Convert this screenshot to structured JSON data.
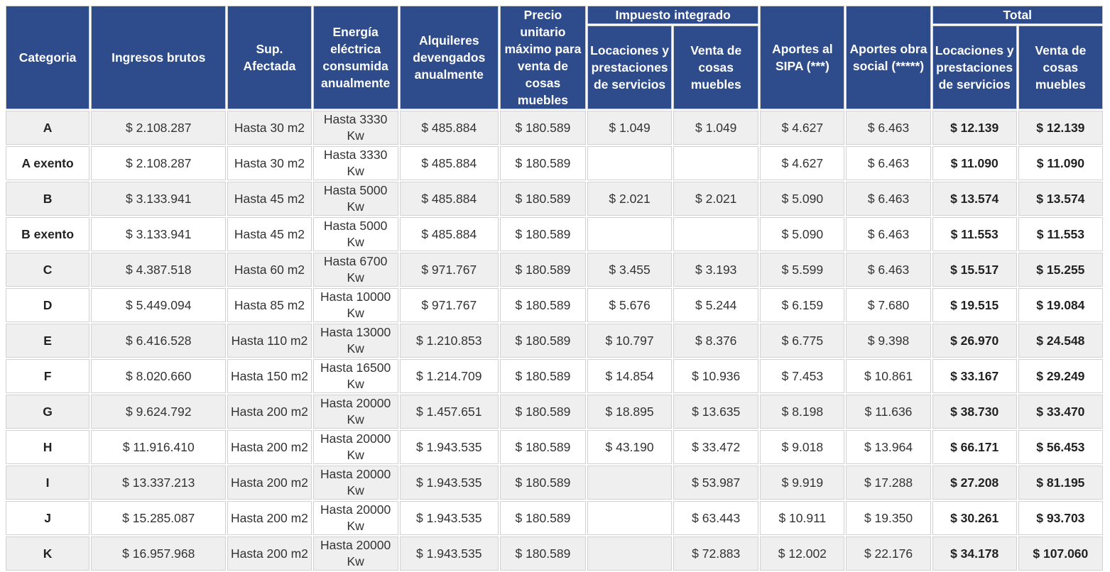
{
  "header": {
    "left": [
      "Categoria",
      "Ingresos brutos",
      "Sup. Afectada",
      "Energía eléctrica consumida anualmente",
      "Alquileres devengados anualmente",
      "Precio unitario máximo para venta de cosas muebles"
    ],
    "impuesto_integrado": {
      "title": "Impuesto integrado",
      "columns": [
        "Locaciones y prestaciones de servicios",
        "Venta de cosas muebles"
      ]
    },
    "aportes": [
      "Aportes al SIPA (***)",
      "Aportes obra social (*****)"
    ],
    "total": {
      "title": "Total",
      "columns": [
        "Locaciones y prestaciones de servicios",
        "Venta de cosas muebles"
      ]
    }
  },
  "rows": [
    [
      "A",
      "$ 2.108.287",
      "Hasta 30 m2",
      "Hasta 3330 Kw",
      "$ 485.884",
      "$ 180.589",
      "$ 1.049",
      "$ 1.049",
      "$ 4.627",
      "$ 6.463",
      "$ 12.139",
      "$ 12.139"
    ],
    [
      "A exento",
      "$ 2.108.287",
      "Hasta 30 m2",
      "Hasta 3330 Kw",
      "$ 485.884",
      "$ 180.589",
      null,
      null,
      "$ 4.627",
      "$ 6.463",
      "$ 11.090",
      "$ 11.090"
    ],
    [
      "B",
      "$ 3.133.941",
      "Hasta 45 m2",
      "Hasta 5000 Kw",
      "$ 485.884",
      "$ 180.589",
      "$ 2.021",
      "$ 2.021",
      "$ 5.090",
      "$ 6.463",
      "$ 13.574",
      "$ 13.574"
    ],
    [
      "B exento",
      "$ 3.133.941",
      "Hasta 45 m2",
      "Hasta 5000 Kw",
      "$ 485.884",
      "$ 180.589",
      null,
      null,
      "$ 5.090",
      "$ 6.463",
      "$ 11.553",
      "$ 11.553"
    ],
    [
      "C",
      "$ 4.387.518",
      "Hasta 60 m2",
      "Hasta 6700 Kw",
      "$ 971.767",
      "$ 180.589",
      "$ 3.455",
      "$ 3.193",
      "$ 5.599",
      "$ 6.463",
      "$ 15.517",
      "$ 15.255"
    ],
    [
      "D",
      "$ 5.449.094",
      "Hasta 85 m2",
      "Hasta 10000 Kw",
      "$ 971.767",
      "$ 180.589",
      "$ 5.676",
      "$ 5.244",
      "$ 6.159",
      "$ 7.680",
      "$ 19.515",
      "$ 19.084"
    ],
    [
      "E",
      "$ 6.416.528",
      "Hasta 110 m2",
      "Hasta 13000 Kw",
      "$ 1.210.853",
      "$ 180.589",
      "$ 10.797",
      "$ 8.376",
      "$ 6.775",
      "$ 9.398",
      "$ 26.970",
      "$ 24.548"
    ],
    [
      "F",
      "$ 8.020.660",
      "Hasta 150 m2",
      "Hasta 16500 Kw",
      "$ 1.214.709",
      "$ 180.589",
      "$ 14.854",
      "$ 10.936",
      "$ 7.453",
      "$ 10.861",
      "$ 33.167",
      "$ 29.249"
    ],
    [
      "G",
      "$ 9.624.792",
      "Hasta 200 m2",
      "Hasta 20000 Kw",
      "$ 1.457.651",
      "$ 180.589",
      "$ 18.895",
      "$ 13.635",
      "$ 8.198",
      "$ 11.636",
      "$ 38.730",
      "$ 33.470"
    ],
    [
      "H",
      "$ 11.916.410",
      "Hasta 200 m2",
      "Hasta 20000 Kw",
      "$ 1.943.535",
      "$ 180.589",
      "$ 43.190",
      "$ 33.472",
      "$ 9.018",
      "$ 13.964",
      "$ 66.171",
      "$ 56.453"
    ],
    [
      "I",
      "$ 13.337.213",
      "Hasta 200 m2",
      "Hasta 20000 Kw",
      "$ 1.943.535",
      "$ 180.589",
      null,
      "$ 53.987",
      "$ 9.919",
      "$ 17.288",
      "$ 27.208",
      "$ 81.195"
    ],
    [
      "J",
      "$ 15.285.087",
      "Hasta 200 m2",
      "Hasta 20000 Kw",
      "$ 1.943.535",
      "$ 180.589",
      null,
      "$ 63.443",
      "$ 10.911",
      "$ 19.350",
      "$ 30.261",
      "$ 93.703"
    ],
    [
      "K",
      "$ 16.957.968",
      "Hasta 200 m2",
      "Hasta 20000 Kw",
      "$ 1.943.535",
      "$ 180.589",
      null,
      "$ 72.883",
      "$ 12.002",
      "$ 22.176",
      "$ 34.178",
      "$ 107.060"
    ]
  ]
}
